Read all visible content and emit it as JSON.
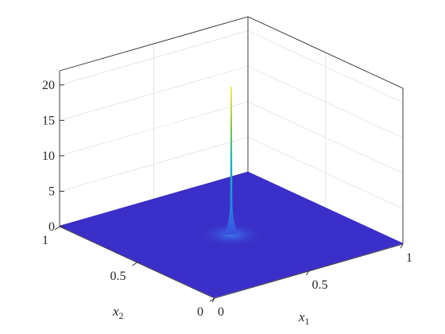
{
  "chart_data": {
    "type": "surface",
    "title": "",
    "xlabel": "x",
    "xlabel_sub": "1",
    "ylabel": "x",
    "ylabel_sub": "2",
    "zlabel": "",
    "xlim": [
      0,
      1
    ],
    "ylim": [
      0,
      1
    ],
    "zlim": [
      0,
      22
    ],
    "x_ticks": [
      {
        "value": 0,
        "label": "0"
      },
      {
        "value": 0.5,
        "label": "0.5"
      },
      {
        "value": 1,
        "label": "1"
      }
    ],
    "y_ticks": [
      {
        "value": 0,
        "label": "0"
      },
      {
        "value": 0.5,
        "label": "0.5"
      },
      {
        "value": 1,
        "label": "1"
      }
    ],
    "z_ticks": [
      {
        "value": 0,
        "label": "0"
      },
      {
        "value": 5,
        "label": "5"
      },
      {
        "value": 10,
        "label": "10"
      },
      {
        "value": 15,
        "label": "15"
      },
      {
        "value": 20,
        "label": "20"
      }
    ],
    "surface": {
      "description_of_function": "sharp peak at center of unit square, near-zero elsewhere",
      "peak_location": [
        0.5,
        0.5
      ],
      "peak_value": 21,
      "base_value": 0
    },
    "colormap": "parula",
    "grid": true
  }
}
